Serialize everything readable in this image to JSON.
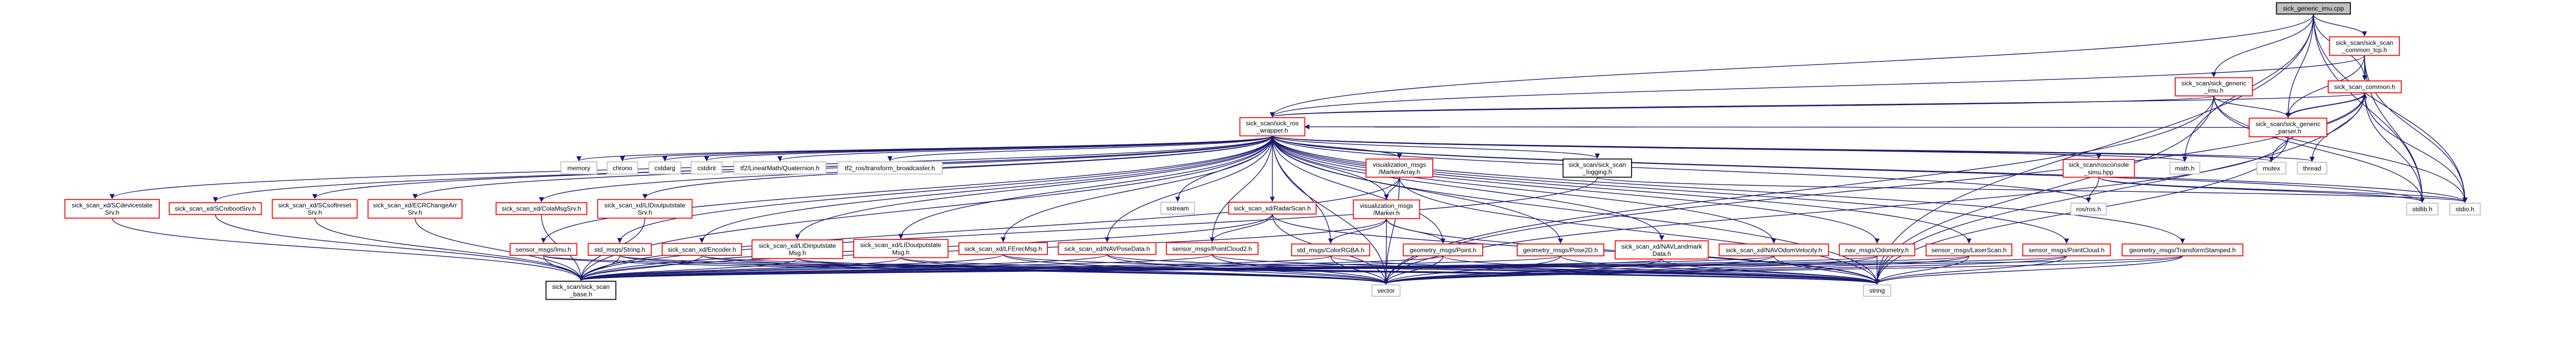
{
  "graph": {
    "colors": {
      "edge": "#191970",
      "red_border": "#ff0000",
      "gray_border": "#bfbfbf",
      "black_border": "#000000",
      "root_fill": "#bfbfbf"
    },
    "nodes": [
      {
        "id": "root",
        "style": "root",
        "lines": [
          "sick_generic_imu.cpp"
        ]
      },
      {
        "id": "common_tcp",
        "style": "red",
        "lines": [
          "sick_scan/sick_scan",
          "_common_tcp.h"
        ]
      },
      {
        "id": "generic_imu",
        "style": "red",
        "lines": [
          "sick_scan/sick_generic",
          "_imu.h"
        ]
      },
      {
        "id": "common",
        "style": "red",
        "lines": [
          "sick_scan_common.h"
        ]
      },
      {
        "id": "parser",
        "style": "red",
        "lines": [
          "sick_scan/sick_generic",
          "_parser.h"
        ]
      },
      {
        "id": "ros_wrapper",
        "style": "red",
        "lines": [
          "sick_scan/sick_ros",
          "_wrapper.h"
        ]
      },
      {
        "id": "memory",
        "style": "gray",
        "lines": [
          "memory"
        ]
      },
      {
        "id": "chrono",
        "style": "gray",
        "lines": [
          "chrono"
        ]
      },
      {
        "id": "cstdarg",
        "style": "gray",
        "lines": [
          "cstdarg"
        ]
      },
      {
        "id": "cstdint",
        "style": "gray",
        "lines": [
          "cstdint"
        ]
      },
      {
        "id": "tf2q",
        "style": "gray",
        "lines": [
          "tf2/LinearMath/Quaternion.h"
        ]
      },
      {
        "id": "tf2ros",
        "style": "gray",
        "lines": [
          "tf2_ros/transform_broadcaster.h"
        ]
      },
      {
        "id": "markerarray",
        "style": "red",
        "lines": [
          "visualization_msgs",
          "/MarkerArray.h"
        ]
      },
      {
        "id": "logging",
        "style": "black",
        "lines": [
          "sick_scan/sick_scan",
          "_logging.h"
        ]
      },
      {
        "id": "rosconsole",
        "style": "red",
        "lines": [
          "sick_scan/rosconsole",
          "_simu.hpp"
        ]
      },
      {
        "id": "math",
        "style": "gray",
        "lines": [
          "math.h"
        ]
      },
      {
        "id": "mutex",
        "style": "gray",
        "lines": [
          "mutex"
        ]
      },
      {
        "id": "thread",
        "style": "gray",
        "lines": [
          "thread"
        ]
      },
      {
        "id": "scdevicestate",
        "style": "red",
        "lines": [
          "sick_scan_xd/SCdevicestate",
          "Srv.h"
        ]
      },
      {
        "id": "screboot",
        "style": "red",
        "lines": [
          "sick_scan_xd/SCrebootSrv.h"
        ]
      },
      {
        "id": "scsoftreset",
        "style": "red",
        "lines": [
          "sick_scan_xd/SCsoftreset",
          "Srv.h"
        ]
      },
      {
        "id": "ecr",
        "style": "red",
        "lines": [
          "sick_scan_xd/ECRChangeArr",
          "Srv.h"
        ]
      },
      {
        "id": "colamsg",
        "style": "red",
        "lines": [
          "sick_scan_xd/ColaMsgSrv.h"
        ]
      },
      {
        "id": "lidoutsrv",
        "style": "red",
        "lines": [
          "sick_scan_xd/LIDoutputstate",
          "Srv.h"
        ]
      },
      {
        "id": "sstream",
        "style": "gray",
        "lines": [
          "sstream"
        ]
      },
      {
        "id": "radarscan",
        "style": "red",
        "lines": [
          "sick_scan_xd/RadarScan.h"
        ]
      },
      {
        "id": "marker",
        "style": "red",
        "lines": [
          "visualization_msgs",
          "/Marker.h"
        ]
      },
      {
        "id": "rosh",
        "style": "gray",
        "lines": [
          "ros/ros.h"
        ]
      },
      {
        "id": "stdlib",
        "style": "gray",
        "lines": [
          "stdlib.h"
        ]
      },
      {
        "id": "stdio",
        "style": "gray",
        "lines": [
          "stdio.h"
        ]
      },
      {
        "id": "imu",
        "style": "red",
        "lines": [
          "sensor_msgs/Imu.h"
        ]
      },
      {
        "id": "string_msg",
        "style": "red",
        "lines": [
          "std_msgs/String.h"
        ]
      },
      {
        "id": "encoder",
        "style": "red",
        "lines": [
          "sick_scan_xd/Encoder.h"
        ]
      },
      {
        "id": "lidinmsg",
        "style": "red",
        "lines": [
          "sick_scan_xd/LIDinputstate",
          "Msg.h"
        ]
      },
      {
        "id": "lidoutmsg",
        "style": "red",
        "lines": [
          "sick_scan_xd/LIDoutputstate",
          "Msg.h"
        ]
      },
      {
        "id": "lferec",
        "style": "red",
        "lines": [
          "sick_scan_xd/LFErecMsg.h"
        ]
      },
      {
        "id": "navpose",
        "style": "red",
        "lines": [
          "sick_scan_xd/NAVPoseData.h"
        ]
      },
      {
        "id": "pc2",
        "style": "red",
        "lines": [
          "sensor_msgs/PointCloud2.h"
        ]
      },
      {
        "id": "colorrgba",
        "style": "red",
        "lines": [
          "std_msgs/ColorRGBA.h"
        ]
      },
      {
        "id": "point",
        "style": "red",
        "lines": [
          "geometry_msgs/Point.h"
        ]
      },
      {
        "id": "pose2d",
        "style": "red",
        "lines": [
          "geometry_msgs/Pose2D.h"
        ]
      },
      {
        "id": "navlandmark",
        "style": "red",
        "lines": [
          "sick_scan_xd/NAVLandmark",
          "Data.h"
        ]
      },
      {
        "id": "navodom",
        "style": "red",
        "lines": [
          "sick_scan_xd/NAVOdomVelocity.h"
        ]
      },
      {
        "id": "odometry",
        "style": "red",
        "lines": [
          "nav_msgs/Odometry.h"
        ]
      },
      {
        "id": "laserscan",
        "style": "red",
        "lines": [
          "sensor_msgs/LaserScan.h"
        ]
      },
      {
        "id": "pointcloud",
        "style": "red",
        "lines": [
          "sensor_msgs/PointCloud.h"
        ]
      },
      {
        "id": "tfstamped",
        "style": "red",
        "lines": [
          "geometry_msgs/TransformStamped.h"
        ]
      },
      {
        "id": "base",
        "style": "black",
        "lines": [
          "sick_scan/sick_scan",
          "_base.h"
        ]
      },
      {
        "id": "vector",
        "style": "gray",
        "lines": [
          "vector"
        ]
      },
      {
        "id": "string",
        "style": "gray",
        "lines": [
          "string"
        ]
      }
    ],
    "edges": [
      [
        "root",
        "common_tcp"
      ],
      [
        "root",
        "generic_imu"
      ],
      [
        "root",
        "common"
      ],
      [
        "root",
        "parser"
      ],
      [
        "root",
        "math"
      ],
      [
        "root",
        "ros_wrapper"
      ],
      [
        "root",
        "stdlib"
      ],
      [
        "root",
        "stdio"
      ],
      [
        "root",
        "string"
      ],
      [
        "common_tcp",
        "ros_wrapper"
      ],
      [
        "common_tcp",
        "common"
      ],
      [
        "common_tcp",
        "parser"
      ],
      [
        "common_tcp",
        "stdlib"
      ],
      [
        "common_tcp",
        "stdio"
      ],
      [
        "generic_imu",
        "ros_wrapper"
      ],
      [
        "generic_imu",
        "parser"
      ],
      [
        "generic_imu",
        "stdlib"
      ],
      [
        "generic_imu",
        "stdio"
      ],
      [
        "generic_imu",
        "string"
      ],
      [
        "generic_imu",
        "vector"
      ],
      [
        "common",
        "ros_wrapper"
      ],
      [
        "common",
        "parser"
      ],
      [
        "common",
        "mutex"
      ],
      [
        "common",
        "thread"
      ],
      [
        "common",
        "stdlib"
      ],
      [
        "common",
        "stdio"
      ],
      [
        "common",
        "vector"
      ],
      [
        "common",
        "string"
      ],
      [
        "parser",
        "common"
      ],
      [
        "parser",
        "ros_wrapper"
      ],
      [
        "parser",
        "string"
      ],
      [
        "parser",
        "vector"
      ],
      [
        "ros_wrapper",
        "memory"
      ],
      [
        "ros_wrapper",
        "chrono"
      ],
      [
        "ros_wrapper",
        "cstdarg"
      ],
      [
        "ros_wrapper",
        "cstdint"
      ],
      [
        "ros_wrapper",
        "tf2q"
      ],
      [
        "ros_wrapper",
        "tf2ros"
      ],
      [
        "ros_wrapper",
        "sstream"
      ],
      [
        "ros_wrapper",
        "radarscan"
      ],
      [
        "ros_wrapper",
        "markerarray"
      ],
      [
        "ros_wrapper",
        "marker"
      ],
      [
        "ros_wrapper",
        "logging"
      ],
      [
        "ros_wrapper",
        "rosconsole"
      ],
      [
        "ros_wrapper",
        "math"
      ],
      [
        "ros_wrapper",
        "mutex"
      ],
      [
        "ros_wrapper",
        "thread"
      ],
      [
        "ros_wrapper",
        "stdlib"
      ],
      [
        "ros_wrapper",
        "stdio"
      ],
      [
        "ros_wrapper",
        "rosh"
      ],
      [
        "ros_wrapper",
        "scdevicestate"
      ],
      [
        "ros_wrapper",
        "screboot"
      ],
      [
        "ros_wrapper",
        "scsoftreset"
      ],
      [
        "ros_wrapper",
        "ecr"
      ],
      [
        "ros_wrapper",
        "colamsg"
      ],
      [
        "ros_wrapper",
        "lidoutsrv"
      ],
      [
        "ros_wrapper",
        "imu"
      ],
      [
        "ros_wrapper",
        "string_msg"
      ],
      [
        "ros_wrapper",
        "encoder"
      ],
      [
        "ros_wrapper",
        "lidinmsg"
      ],
      [
        "ros_wrapper",
        "lidoutmsg"
      ],
      [
        "ros_wrapper",
        "lferec"
      ],
      [
        "ros_wrapper",
        "navpose"
      ],
      [
        "ros_wrapper",
        "pc2"
      ],
      [
        "ros_wrapper",
        "colorrgba"
      ],
      [
        "ros_wrapper",
        "point"
      ],
      [
        "ros_wrapper",
        "pose2d"
      ],
      [
        "ros_wrapper",
        "navlandmark"
      ],
      [
        "ros_wrapper",
        "navodom"
      ],
      [
        "ros_wrapper",
        "odometry"
      ],
      [
        "ros_wrapper",
        "laserscan"
      ],
      [
        "ros_wrapper",
        "pointcloud"
      ],
      [
        "ros_wrapper",
        "tfstamped"
      ],
      [
        "ros_wrapper",
        "vector"
      ],
      [
        "ros_wrapper",
        "string"
      ],
      [
        "ros_wrapper",
        "base"
      ],
      [
        "scdevicestate",
        "base"
      ],
      [
        "screboot",
        "base"
      ],
      [
        "scsoftreset",
        "base"
      ],
      [
        "ecr",
        "base"
      ],
      [
        "colamsg",
        "base"
      ],
      [
        "lidoutsrv",
        "base"
      ],
      [
        "markerarray",
        "marker"
      ],
      [
        "markerarray",
        "vector"
      ],
      [
        "markerarray",
        "string"
      ],
      [
        "markerarray",
        "base"
      ],
      [
        "marker",
        "colorrgba"
      ],
      [
        "marker",
        "point"
      ],
      [
        "marker",
        "vector"
      ],
      [
        "marker",
        "string"
      ],
      [
        "marker",
        "base"
      ],
      [
        "radarscan",
        "pc2"
      ],
      [
        "radarscan",
        "vector"
      ],
      [
        "radarscan",
        "string"
      ],
      [
        "radarscan",
        "base"
      ],
      [
        "logging",
        "stdio"
      ],
      [
        "logging",
        "base"
      ],
      [
        "rosconsole",
        "rosh"
      ],
      [
        "rosconsole",
        "stdlib"
      ],
      [
        "rosconsole",
        "stdio"
      ],
      [
        "imu",
        "base"
      ],
      [
        "imu",
        "vector"
      ],
      [
        "imu",
        "string"
      ],
      [
        "string_msg",
        "base"
      ],
      [
        "string_msg",
        "vector"
      ],
      [
        "string_msg",
        "string"
      ],
      [
        "encoder",
        "base"
      ],
      [
        "encoder",
        "vector"
      ],
      [
        "encoder",
        "string"
      ],
      [
        "lidinmsg",
        "base"
      ],
      [
        "lidinmsg",
        "vector"
      ],
      [
        "lidinmsg",
        "string"
      ],
      [
        "lidoutmsg",
        "base"
      ],
      [
        "lidoutmsg",
        "vector"
      ],
      [
        "lidoutmsg",
        "string"
      ],
      [
        "lferec",
        "base"
      ],
      [
        "lferec",
        "vector"
      ],
      [
        "lferec",
        "string"
      ],
      [
        "navpose",
        "base"
      ],
      [
        "navpose",
        "vector"
      ],
      [
        "navpose",
        "string"
      ],
      [
        "pc2",
        "base"
      ],
      [
        "pc2",
        "vector"
      ],
      [
        "pc2",
        "string"
      ],
      [
        "colorrgba",
        "base"
      ],
      [
        "colorrgba",
        "vector"
      ],
      [
        "colorrgba",
        "string"
      ],
      [
        "point",
        "base"
      ],
      [
        "point",
        "vector"
      ],
      [
        "point",
        "string"
      ],
      [
        "pose2d",
        "base"
      ],
      [
        "pose2d",
        "vector"
      ],
      [
        "pose2d",
        "string"
      ],
      [
        "navlandmark",
        "base"
      ],
      [
        "navlandmark",
        "vector"
      ],
      [
        "navlandmark",
        "string"
      ],
      [
        "navodom",
        "base"
      ],
      [
        "navodom",
        "vector"
      ],
      [
        "navodom",
        "string"
      ],
      [
        "odometry",
        "base"
      ],
      [
        "odometry",
        "vector"
      ],
      [
        "odometry",
        "string"
      ],
      [
        "laserscan",
        "base"
      ],
      [
        "laserscan",
        "vector"
      ],
      [
        "laserscan",
        "string"
      ],
      [
        "pointcloud",
        "base"
      ],
      [
        "pointcloud",
        "vector"
      ],
      [
        "pointcloud",
        "string"
      ],
      [
        "tfstamped",
        "base"
      ],
      [
        "tfstamped",
        "vector"
      ],
      [
        "tfstamped",
        "string"
      ]
    ]
  }
}
